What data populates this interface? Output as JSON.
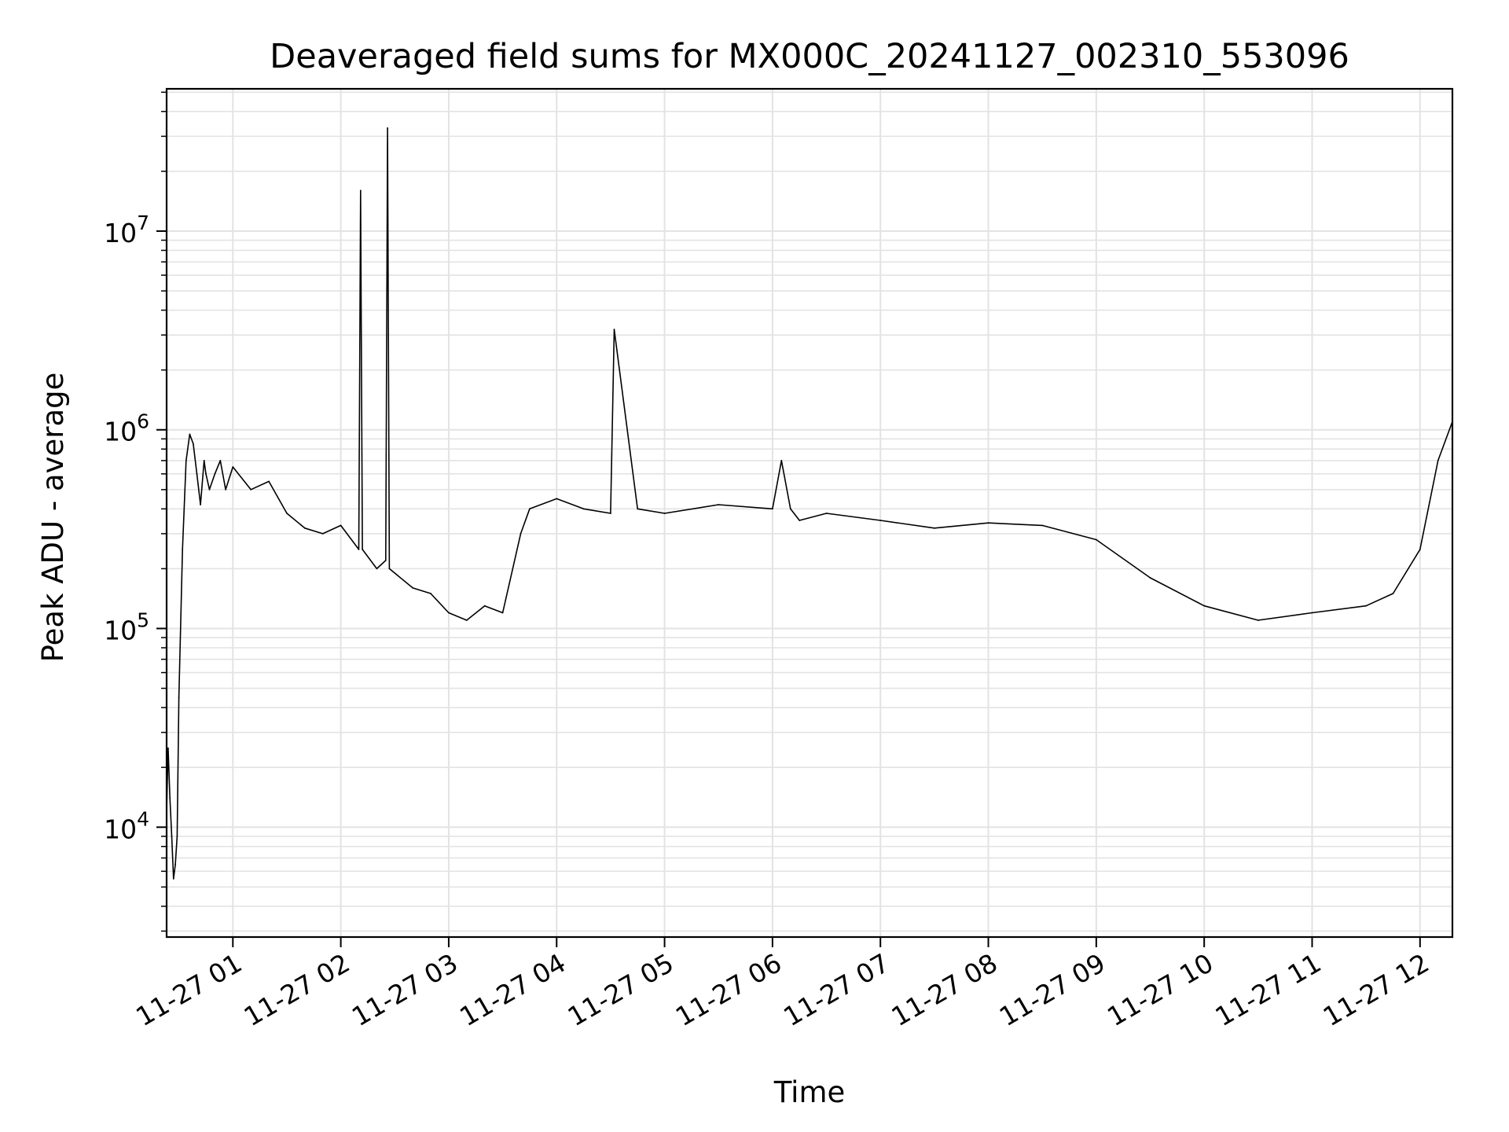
{
  "chart_data": {
    "type": "line",
    "title": "Deaveraged field sums for MX000C_20241127_002310_553096",
    "xlabel": "Time",
    "ylabel": "Peak ADU - average",
    "yscale": "log",
    "ylim": [
      2800,
      52000000
    ],
    "xlim": [
      "2024-11-27 00:23:10",
      "2024-11-27 12:18:00"
    ],
    "grid": true,
    "line_color": "#000000",
    "grid_color": "#e3e3e3",
    "x_ticks": [
      {
        "value": "2024-11-27 01:00",
        "label": "11-27 01"
      },
      {
        "value": "2024-11-27 02:00",
        "label": "11-27 02"
      },
      {
        "value": "2024-11-27 03:00",
        "label": "11-27 03"
      },
      {
        "value": "2024-11-27 04:00",
        "label": "11-27 04"
      },
      {
        "value": "2024-11-27 05:00",
        "label": "11-27 05"
      },
      {
        "value": "2024-11-27 06:00",
        "label": "11-27 06"
      },
      {
        "value": "2024-11-27 07:00",
        "label": "11-27 07"
      },
      {
        "value": "2024-11-27 08:00",
        "label": "11-27 08"
      },
      {
        "value": "2024-11-27 09:00",
        "label": "11-27 09"
      },
      {
        "value": "2024-11-27 10:00",
        "label": "11-27 10"
      },
      {
        "value": "2024-11-27 11:00",
        "label": "11-27 11"
      },
      {
        "value": "2024-11-27 12:00",
        "label": "11-27 12"
      }
    ],
    "y_ticks": [
      {
        "value": 10000,
        "base": "10",
        "exp": "4"
      },
      {
        "value": 100000,
        "base": "10",
        "exp": "5"
      },
      {
        "value": 1000000,
        "base": "10",
        "exp": "6"
      },
      {
        "value": 10000000,
        "base": "10",
        "exp": "7"
      }
    ],
    "series": [
      {
        "x": [
          "2024-11-27 00:23:10",
          "2024-11-27 00:24",
          "2024-11-27 00:25",
          "2024-11-27 00:26",
          "2024-11-27 00:27",
          "2024-11-27 00:28",
          "2024-11-27 00:29",
          "2024-11-27 00:30",
          "2024-11-27 00:32",
          "2024-11-27 00:34",
          "2024-11-27 00:36",
          "2024-11-27 00:38",
          "2024-11-27 00:40",
          "2024-11-27 00:42",
          "2024-11-27 00:44",
          "2024-11-27 00:45",
          "2024-11-27 00:47",
          "2024-11-27 00:50",
          "2024-11-27 00:53",
          "2024-11-27 00:56",
          "2024-11-27 01:00",
          "2024-11-27 01:10",
          "2024-11-27 01:20",
          "2024-11-27 01:30",
          "2024-11-27 01:40",
          "2024-11-27 01:50",
          "2024-11-27 02:00",
          "2024-11-27 02:10",
          "2024-11-27 02:11",
          "2024-11-27 02:12",
          "2024-11-27 02:20",
          "2024-11-27 02:25",
          "2024-11-27 02:26",
          "2024-11-27 02:27",
          "2024-11-27 02:40",
          "2024-11-27 02:50",
          "2024-11-27 03:00",
          "2024-11-27 03:10",
          "2024-11-27 03:20",
          "2024-11-27 03:30",
          "2024-11-27 03:40",
          "2024-11-27 03:45",
          "2024-11-27 04:00",
          "2024-11-27 04:15",
          "2024-11-27 04:30",
          "2024-11-27 04:32",
          "2024-11-27 04:45",
          "2024-11-27 05:00",
          "2024-11-27 05:30",
          "2024-11-27 06:00",
          "2024-11-27 06:05",
          "2024-11-27 06:10",
          "2024-11-27 06:15",
          "2024-11-27 06:30",
          "2024-11-27 07:00",
          "2024-11-27 07:30",
          "2024-11-27 08:00",
          "2024-11-27 08:30",
          "2024-11-27 09:00",
          "2024-11-27 09:30",
          "2024-11-27 10:00",
          "2024-11-27 10:30",
          "2024-11-27 11:00",
          "2024-11-27 11:30",
          "2024-11-27 11:45",
          "2024-11-27 12:00",
          "2024-11-27 12:10",
          "2024-11-27 12:18"
        ],
        "y": [
          12000,
          25000,
          14000,
          9000,
          5500,
          6500,
          9000,
          45000,
          250000,
          700000,
          950000,
          850000,
          600000,
          420000,
          700000,
          600000,
          500000,
          600000,
          700000,
          500000,
          650000,
          500000,
          550000,
          380000,
          320000,
          300000,
          330000,
          250000,
          16000000,
          250000,
          200000,
          220000,
          33000000,
          200000,
          160000,
          150000,
          120000,
          110000,
          130000,
          120000,
          300000,
          400000,
          450000,
          400000,
          380000,
          3200000,
          400000,
          380000,
          420000,
          400000,
          700000,
          400000,
          350000,
          380000,
          350000,
          320000,
          340000,
          330000,
          280000,
          180000,
          130000,
          110000,
          120000,
          130000,
          150000,
          250000,
          700000,
          1100000
        ]
      }
    ]
  }
}
